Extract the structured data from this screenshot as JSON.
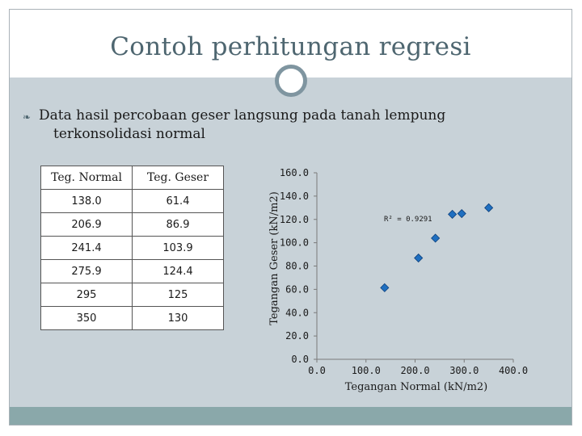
{
  "slide": {
    "title": "Contoh perhitungan regresi",
    "bullet_line1": "Data hasil percobaan geser langsung pada tanah lempung",
    "bullet_line2": "terkonsolidasi normal",
    "bullet_icon": "fleuron-bullet-icon",
    "colors": {
      "title": "#4e6670",
      "content_bg": "#c8d2d8",
      "footer": "#8aa8aa",
      "marker": "#1f6fc0"
    }
  },
  "table": {
    "headers": [
      "Teg. Normal",
      "Teg. Geser"
    ],
    "rows": [
      [
        "138.0",
        "61.4"
      ],
      [
        "206.9",
        "86.9"
      ],
      [
        "241.4",
        "103.9"
      ],
      [
        "275.9",
        "124.4"
      ],
      [
        "295",
        "125"
      ],
      [
        "350",
        "130"
      ]
    ]
  },
  "chart_data": {
    "type": "scatter",
    "x": [
      138.0,
      206.9,
      241.4,
      275.9,
      295,
      350
    ],
    "y": [
      61.4,
      86.9,
      103.9,
      124.4,
      125,
      130
    ],
    "xlabel": "Tegangan Normal (kN/m2)",
    "ylabel": "Tegangan Geser (kN/m2)",
    "xlim": [
      0,
      400
    ],
    "ylim": [
      0,
      160
    ],
    "xticks": [
      "0.0",
      "100.0",
      "200.0",
      "300.0",
      "400.0"
    ],
    "yticks": [
      "0.0",
      "20.0",
      "40.0",
      "60.0",
      "80.0",
      "100.0",
      "120.0",
      "140.0",
      "160.0"
    ],
    "annotation": "R² = 0.9291",
    "grid": false,
    "legend": "none"
  }
}
